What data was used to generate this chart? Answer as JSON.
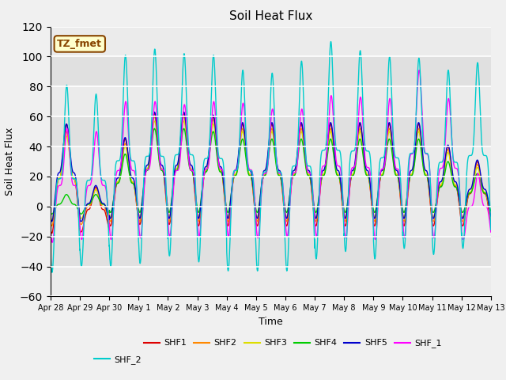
{
  "title": "Soil Heat Flux",
  "xlabel": "Time",
  "ylabel": "Soil Heat Flux",
  "ylim": [
    -60,
    120
  ],
  "yticks": [
    -60,
    -40,
    -20,
    0,
    20,
    40,
    60,
    80,
    100,
    120
  ],
  "xtick_labels": [
    "Apr 28",
    "Apr 29",
    "Apr 30",
    "May 1",
    "May 2",
    "May 3",
    "May 4",
    "May 5",
    "May 6",
    "May 7",
    "May 8",
    "May 9",
    "May 10",
    "May 11",
    "May 12",
    "May 13"
  ],
  "series_colors": {
    "SHF1": "#dd0000",
    "SHF2": "#ff8800",
    "SHF3": "#dddd00",
    "SHF4": "#00cc00",
    "SHF5": "#0000cc",
    "SHF_1": "#ff00ff",
    "SHF_2": "#00cccc"
  },
  "annotation_text": "TZ_fmet",
  "annotation_bg": "#ffffcc",
  "annotation_border": "#884400",
  "n_days": 15,
  "shf1_peaks": [
    55,
    13,
    45,
    62,
    62,
    60,
    55,
    55,
    55,
    55,
    55,
    55,
    55,
    40,
    30
  ],
  "shf2_peaks": [
    50,
    12,
    42,
    60,
    60,
    58,
    52,
    52,
    52,
    52,
    52,
    52,
    52,
    38,
    28
  ],
  "shf3_peaks": [
    47,
    11,
    40,
    57,
    57,
    55,
    50,
    50,
    50,
    50,
    50,
    50,
    50,
    36,
    26
  ],
  "shf4_peaks": [
    8,
    8,
    35,
    52,
    52,
    50,
    45,
    45,
    45,
    45,
    45,
    45,
    45,
    30,
    22
  ],
  "shf5_peaks": [
    55,
    14,
    46,
    63,
    63,
    61,
    56,
    56,
    56,
    56,
    56,
    56,
    56,
    41,
    31
  ],
  "shf_1_peaks": [
    52,
    50,
    70,
    70,
    68,
    70,
    69,
    65,
    65,
    74,
    73,
    72,
    91,
    72,
    22
  ],
  "shf_2_peaks": [
    81,
    75,
    101,
    105,
    102,
    101,
    91,
    89,
    97,
    110,
    104,
    100,
    99,
    91,
    96
  ],
  "shf1_troughs": [
    -18,
    -17,
    -13,
    -12,
    -12,
    -13,
    -13,
    -13,
    -13,
    -13,
    -13,
    -13,
    -13,
    -13,
    -13
  ],
  "shf2_troughs": [
    -13,
    -12,
    -10,
    -10,
    -10,
    -10,
    -10,
    -10,
    -10,
    -10,
    -10,
    -10,
    -10,
    -10,
    -10
  ],
  "shf3_troughs": [
    -9,
    -8,
    -7,
    -7,
    -7,
    -7,
    -7,
    -7,
    -7,
    -7,
    -7,
    -7,
    -7,
    -7,
    -7
  ],
  "shf4_troughs": [
    -5,
    -5,
    -4,
    -4,
    -4,
    -4,
    -4,
    -4,
    -4,
    -4,
    -4,
    -4,
    -4,
    -4,
    -4
  ],
  "shf5_troughs": [
    -10,
    -10,
    -8,
    -8,
    -8,
    -8,
    -8,
    -8,
    -8,
    -8,
    -8,
    -8,
    -8,
    -8,
    -8
  ],
  "shf_1_troughs": [
    -24,
    -22,
    -22,
    -21,
    -20,
    -20,
    -20,
    -21,
    -20,
    -20,
    -21,
    -22,
    -21,
    -21,
    -22
  ],
  "shf_2_troughs": [
    -44,
    -40,
    -40,
    -38,
    -33,
    -37,
    -43,
    -43,
    -43,
    -35,
    -30,
    -35,
    -28,
    -32,
    -28
  ]
}
